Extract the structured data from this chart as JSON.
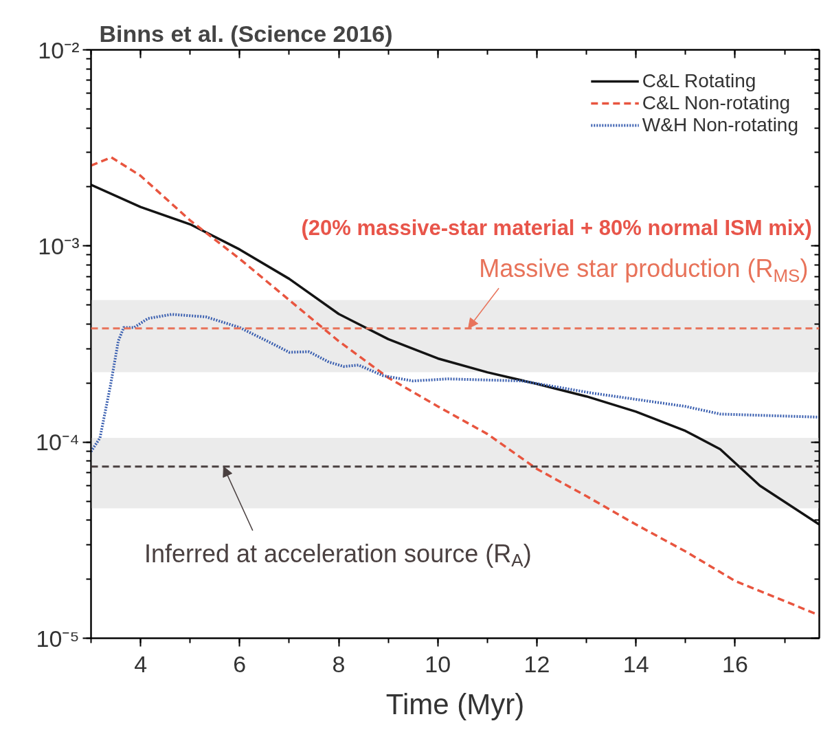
{
  "chart_data": {
    "type": "line",
    "title": "Binns et al. (Science 2016)",
    "xlabel": "Time (Myr)",
    "log": "y",
    "xlim": [
      3,
      17.7
    ],
    "xticks": [
      4,
      6,
      8,
      10,
      12,
      14,
      16
    ],
    "ylim": [
      1e-05,
      0.01
    ],
    "yticks": [
      {
        "value": 1e-05,
        "label": "10⁻⁵"
      },
      {
        "value": 0.0001,
        "label": "10⁻⁴"
      },
      {
        "value": 0.001,
        "label": "10⁻³"
      },
      {
        "value": 0.01,
        "label": "10⁻²"
      }
    ],
    "grid": false,
    "legend": "top right",
    "series": [
      {
        "name": "C&L Rotating",
        "color": "#141414",
        "line_style": "solid",
        "x": [
          3,
          4,
          5,
          6,
          7,
          8,
          9,
          10,
          11,
          12,
          13,
          14,
          15,
          15.7,
          16.5,
          17.7
        ],
        "values": [
          0.00205,
          0.00158,
          0.00129,
          0.00096,
          0.00068,
          0.00045,
          0.000335,
          0.000267,
          0.000227,
          0.000198,
          0.000171,
          0.000143,
          0.000114,
          9.2e-05,
          6e-05,
          3.8e-05
        ]
      },
      {
        "name": "C&L Non-rotating",
        "color": "#e8553f",
        "line_style": "dashed",
        "x": [
          3,
          3.41,
          4,
          5,
          6,
          7,
          8,
          9,
          10,
          11,
          12,
          13,
          14,
          15,
          16,
          17.7
        ],
        "values": [
          0.00257,
          0.00283,
          0.00228,
          0.00135,
          0.00086,
          0.00053,
          0.000327,
          0.000213,
          0.000152,
          0.00011,
          7.3e-05,
          5.3e-05,
          3.8e-05,
          2.77e-05,
          1.96e-05,
          1.31e-05
        ]
      },
      {
        "name": "W&H Non-rotating",
        "color": "#3a5fb0",
        "line_style": "dotted",
        "x": [
          3,
          3.18,
          3.39,
          3.55,
          3.66,
          3.87,
          4.15,
          4.63,
          5.32,
          6,
          6.7,
          7,
          7.4,
          7.8,
          8.1,
          8.4,
          8.9,
          9.5,
          10.2,
          11.7,
          13.1,
          15,
          15.7,
          17.7
        ],
        "values": [
          8.95e-05,
          0.000105,
          0.000193,
          0.000327,
          0.000384,
          0.000384,
          0.000427,
          0.000448,
          0.000435,
          0.000384,
          0.000314,
          0.000287,
          0.000289,
          0.000256,
          0.000243,
          0.000247,
          0.000218,
          0.000205,
          0.00021,
          0.000205,
          0.000178,
          0.000152,
          0.000139,
          0.000134
        ]
      }
    ],
    "bands": [
      {
        "axis": "y",
        "from": 0.000227,
        "to": 0.00053,
        "color": "#ebebeb"
      },
      {
        "axis": "y",
        "from": 4.6e-05,
        "to": 0.000105,
        "color": "#ebebeb"
      }
    ],
    "ref_lines": [
      {
        "axis": "y",
        "value": 0.00038,
        "label": "Massive star production (R$_{MS}$)",
        "color": "#e8735a",
        "line_style": "dashed"
      },
      {
        "axis": "y",
        "value": 7.5e-05,
        "label": "Inferred at acceleration source (R$_{A}$)",
        "color": "#4a4040",
        "line_style": "dashed"
      }
    ],
    "annotations": [
      "(20% massive-star material + 80% normal ISM mix)"
    ]
  }
}
